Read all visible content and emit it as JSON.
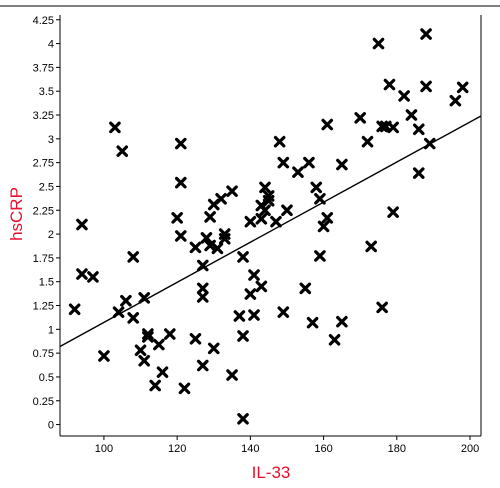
{
  "chart_data": {
    "type": "scatter",
    "title": "",
    "xlabel": "IL-33",
    "ylabel": "hsCRP",
    "xlim": [
      88,
      203
    ],
    "ylim": [
      -0.12,
      4.3
    ],
    "x_ticks": [
      100,
      120,
      140,
      160,
      180,
      200
    ],
    "y_ticks": [
      "0",
      "0.25",
      "0.5",
      "0.75",
      "1",
      "1.25",
      "1.5",
      "1.75",
      "2",
      "2.25",
      "2.5",
      "2.75",
      "3",
      "3.25",
      "3.5",
      "3.75",
      "4",
      "4.25"
    ],
    "grid": false,
    "legend": "none",
    "marker": "x",
    "axis_title_color": "#e8112d",
    "marker_color": "#000000",
    "trendline": {
      "x": [
        88,
        203
      ],
      "y": [
        0.82,
        3.24
      ]
    },
    "points": [
      [
        92,
        1.21
      ],
      [
        94,
        2.1
      ],
      [
        94,
        1.58
      ],
      [
        97,
        1.55
      ],
      [
        100,
        0.72
      ],
      [
        103,
        3.12
      ],
      [
        104,
        1.18
      ],
      [
        105,
        2.87
      ],
      [
        106,
        1.3
      ],
      [
        108,
        1.76
      ],
      [
        108,
        1.12
      ],
      [
        110,
        0.78
      ],
      [
        111,
        1.33
      ],
      [
        111,
        0.67
      ],
      [
        112,
        0.92
      ],
      [
        112,
        0.95
      ],
      [
        114,
        0.41
      ],
      [
        115,
        0.84
      ],
      [
        116,
        0.55
      ],
      [
        118,
        0.95
      ],
      [
        120,
        2.17
      ],
      [
        121,
        2.54
      ],
      [
        121,
        1.98
      ],
      [
        121,
        2.95
      ],
      [
        122,
        0.38
      ],
      [
        125,
        0.9
      ],
      [
        125,
        1.86
      ],
      [
        127,
        0.62
      ],
      [
        127,
        1.67
      ],
      [
        127,
        1.43
      ],
      [
        127,
        1.34
      ],
      [
        128,
        1.96
      ],
      [
        129,
        2.18
      ],
      [
        129,
        1.88
      ],
      [
        130,
        0.8
      ],
      [
        130,
        2.31
      ],
      [
        131,
        1.85
      ],
      [
        132,
        2.37
      ],
      [
        133,
        1.95
      ],
      [
        133,
        2.0
      ],
      [
        135,
        2.45
      ],
      [
        135,
        0.52
      ],
      [
        137,
        1.14
      ],
      [
        138,
        1.76
      ],
      [
        138,
        0.93
      ],
      [
        138,
        0.06
      ],
      [
        140,
        2.13
      ],
      [
        140,
        1.37
      ],
      [
        141,
        1.57
      ],
      [
        141,
        1.15
      ],
      [
        143,
        1.45
      ],
      [
        143,
        2.16
      ],
      [
        143,
        2.3
      ],
      [
        144,
        2.25
      ],
      [
        144,
        2.49
      ],
      [
        145,
        2.4
      ],
      [
        145,
        2.35
      ],
      [
        147,
        2.13
      ],
      [
        148,
        2.97
      ],
      [
        149,
        1.18
      ],
      [
        149,
        2.75
      ],
      [
        150,
        2.25
      ],
      [
        153,
        2.65
      ],
      [
        155,
        1.43
      ],
      [
        156,
        2.75
      ],
      [
        157,
        1.07
      ],
      [
        158,
        2.49
      ],
      [
        159,
        2.37
      ],
      [
        159,
        1.77
      ],
      [
        160,
        2.08
      ],
      [
        161,
        2.17
      ],
      [
        161,
        3.15
      ],
      [
        163,
        0.89
      ],
      [
        165,
        1.08
      ],
      [
        165,
        2.73
      ],
      [
        170,
        3.22
      ],
      [
        172,
        2.97
      ],
      [
        173,
        1.87
      ],
      [
        175,
        4.0
      ],
      [
        176,
        3.13
      ],
      [
        176,
        1.23
      ],
      [
        177,
        3.13
      ],
      [
        178,
        3.57
      ],
      [
        179,
        3.12
      ],
      [
        179,
        2.23
      ],
      [
        182,
        3.45
      ],
      [
        184,
        3.25
      ],
      [
        186,
        3.1
      ],
      [
        186,
        2.64
      ],
      [
        188,
        4.1
      ],
      [
        188,
        3.55
      ],
      [
        189,
        2.95
      ],
      [
        196,
        3.4
      ],
      [
        198,
        3.54
      ]
    ]
  }
}
